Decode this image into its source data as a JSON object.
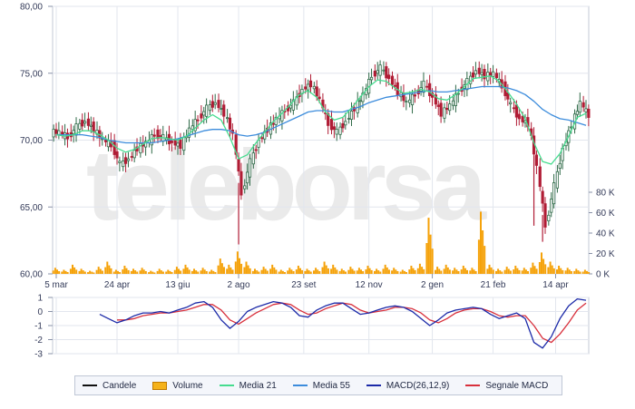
{
  "watermark": "teleborsa",
  "colors": {
    "up": "#2f6a48",
    "down": "#b01c35",
    "volume": "#f5a20a",
    "media21": "#46dc8f",
    "media55": "#3c8cdc",
    "macd": "#1c2aa8",
    "signal": "#d8303c",
    "grid": "#e2e6ee",
    "axis": "#8a93a8"
  },
  "legend": [
    {
      "label": "Candele",
      "color": "#111111",
      "kind": "line"
    },
    {
      "label": "Volume",
      "color": "#f5b21a",
      "kind": "box"
    },
    {
      "label": "Media 21",
      "color": "#46dc8f",
      "kind": "line"
    },
    {
      "label": "Media 55",
      "color": "#3c8cdc",
      "kind": "line"
    },
    {
      "label": "MACD(26,12,9)",
      "color": "#1c2aa8",
      "kind": "line"
    },
    {
      "label": "Segnale MACD",
      "color": "#d8303c",
      "kind": "line"
    }
  ],
  "chart_data": [
    {
      "type": "candlestick",
      "ylim": [
        60,
        80
      ],
      "y_ticks": [
        "80,00",
        "75,00",
        "70,00",
        "65,00",
        "60,00"
      ],
      "x_ticks": [
        {
          "label": "5 mar",
          "week": 0
        },
        {
          "label": "24 apr",
          "week": 7
        },
        {
          "label": "13 giu",
          "week": 14
        },
        {
          "label": "2 ago",
          "week": 21
        },
        {
          "label": "23 set",
          "week": 28.5
        },
        {
          "label": "12 nov",
          "week": 36
        },
        {
          "label": "2 gen",
          "week": 43.3
        },
        {
          "label": "21 feb",
          "week": 50.3
        },
        {
          "label": "14 apr",
          "week": 57.5
        }
      ],
      "weeks": 62,
      "close": [
        70.6,
        70.2,
        71.0,
        71.4,
        70.8,
        70.0,
        69.6,
        68.2,
        68.6,
        69.4,
        69.8,
        70.4,
        70.2,
        69.8,
        69.6,
        70.8,
        71.6,
        72.4,
        72.8,
        72.0,
        70.4,
        66.0,
        68.4,
        70.0,
        70.8,
        71.6,
        72.2,
        72.8,
        73.8,
        74.2,
        73.0,
        71.2,
        70.6,
        71.4,
        72.4,
        73.4,
        74.8,
        75.4,
        74.6,
        73.6,
        72.8,
        73.4,
        74.2,
        73.2,
        72.0,
        72.6,
        73.6,
        74.4,
        75.2,
        74.8,
        75.0,
        74.0,
        72.6,
        71.6,
        71.2,
        68.0,
        63.6,
        66.6,
        69.4,
        71.2,
        72.8,
        71.8
      ],
      "media21": [
        70.4,
        70.3,
        70.4,
        70.7,
        70.7,
        70.4,
        70.0,
        69.4,
        69.1,
        69.3,
        69.7,
        70.1,
        70.2,
        70.1,
        70.0,
        70.3,
        70.9,
        71.5,
        71.9,
        71.5,
        70.2,
        68.6,
        68.9,
        69.8,
        70.6,
        71.4,
        72.0,
        72.7,
        73.4,
        73.7,
        73.2,
        72.1,
        71.5,
        71.7,
        72.4,
        73.2,
        74.0,
        74.5,
        74.4,
        73.9,
        73.5,
        73.6,
        73.8,
        73.6,
        73.1,
        73.0,
        73.4,
        74.0,
        74.6,
        74.7,
        74.8,
        74.4,
        73.6,
        72.7,
        71.6,
        69.8,
        68.4,
        68.2,
        69.0,
        70.3,
        71.7,
        72.0
      ],
      "media55": [
        70.4,
        70.4,
        70.4,
        70.4,
        70.3,
        70.2,
        70.0,
        69.9,
        69.8,
        69.8,
        69.8,
        69.8,
        69.9,
        70.0,
        70.1,
        70.3,
        70.5,
        70.7,
        70.8,
        70.8,
        70.7,
        70.4,
        70.3,
        70.4,
        70.6,
        70.9,
        71.2,
        71.5,
        71.8,
        72.1,
        72.2,
        72.2,
        72.1,
        72.1,
        72.3,
        72.5,
        72.8,
        73.0,
        73.2,
        73.3,
        73.4,
        73.5,
        73.6,
        73.7,
        73.6,
        73.6,
        73.7,
        73.8,
        73.9,
        74.0,
        74.0,
        74.0,
        73.9,
        73.7,
        73.4,
        72.9,
        72.3,
        71.9,
        71.6,
        71.5,
        71.3,
        71.1
      ]
    },
    {
      "type": "bar",
      "name": "Volume",
      "ylim": [
        0,
        80000
      ],
      "y_ticks": [
        "80 K",
        "60 K",
        "40 K",
        "20 K",
        "0 K"
      ],
      "values": [
        6000,
        4000,
        9000,
        5000,
        3000,
        7000,
        12000,
        4000,
        8000,
        5000,
        6000,
        3000,
        5000,
        4000,
        7000,
        9000,
        5000,
        6000,
        4000,
        15000,
        9000,
        22000,
        12000,
        5000,
        7000,
        9000,
        4000,
        6000,
        8000,
        5000,
        6000,
        12000,
        9000,
        5000,
        7000,
        6000,
        8000,
        5000,
        9000,
        6000,
        4000,
        8000,
        10000,
        55000,
        7000,
        9000,
        6000,
        8000,
        6000,
        61000,
        9000,
        5000,
        7000,
        8000,
        6000,
        11000,
        21000,
        12000,
        8000,
        6000,
        5000,
        4000
      ]
    },
    {
      "type": "line",
      "ylim": [
        -3,
        1
      ],
      "y_ticks": [
        "1",
        "0",
        "-1",
        "-2",
        "-3"
      ],
      "series": [
        {
          "name": "MACD(26,12,9)",
          "values": [
            -0.2,
            -0.5,
            -0.8,
            -0.6,
            -0.3,
            -0.1,
            -0.1,
            0.0,
            -0.1,
            0.1,
            0.3,
            0.6,
            0.7,
            0.3,
            -0.6,
            -1.2,
            -0.7,
            0.0,
            0.3,
            0.5,
            0.7,
            0.6,
            0.3,
            -0.3,
            -0.4,
            0.1,
            0.4,
            0.6,
            0.6,
            0.2,
            -0.2,
            -0.1,
            0.1,
            0.3,
            0.4,
            0.3,
            0.0,
            -0.5,
            -1.0,
            -0.6,
            -0.1,
            0.1,
            0.2,
            0.3,
            0.2,
            -0.2,
            -0.5,
            -0.3,
            -0.1,
            -0.5,
            -2.2,
            -2.6,
            -1.8,
            -0.5,
            0.4,
            0.9,
            0.8
          ]
        },
        {
          "name": "Segnale MACD",
          "values": [
            null,
            null,
            -0.6,
            -0.6,
            -0.5,
            -0.3,
            -0.2,
            -0.1,
            -0.1,
            0.0,
            0.1,
            0.3,
            0.5,
            0.5,
            0.1,
            -0.6,
            -0.9,
            -0.5,
            -0.1,
            0.2,
            0.5,
            0.6,
            0.5,
            0.1,
            -0.2,
            -0.1,
            0.2,
            0.4,
            0.6,
            0.5,
            0.1,
            -0.1,
            0.0,
            0.1,
            0.3,
            0.3,
            0.2,
            -0.1,
            -0.6,
            -0.8,
            -0.5,
            -0.1,
            0.1,
            0.2,
            0.2,
            0.0,
            -0.3,
            -0.4,
            -0.3,
            -0.3,
            -1.0,
            -1.9,
            -2.2,
            -1.6,
            -0.8,
            0.1,
            0.6
          ]
        }
      ]
    }
  ]
}
